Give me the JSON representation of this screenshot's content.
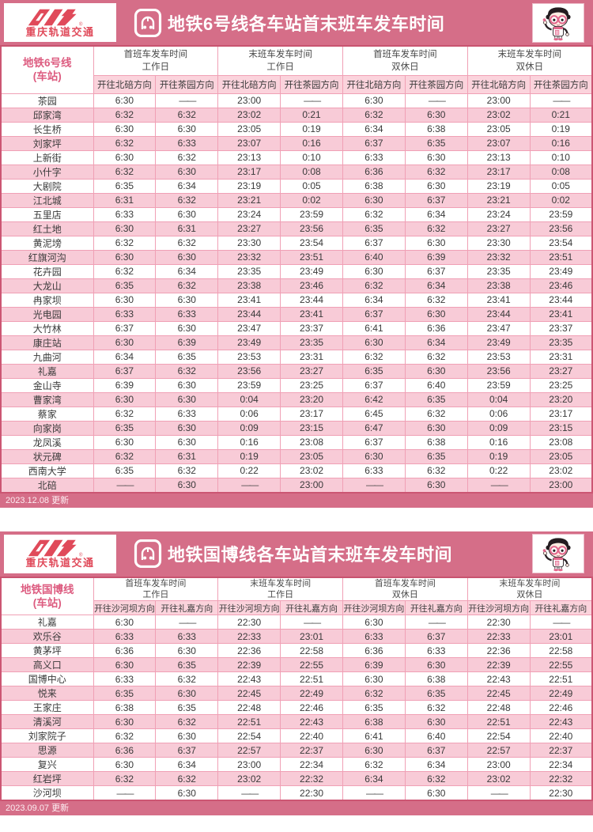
{
  "brand": {
    "name": "重庆轨道交通",
    "logo_color": "#e04a5a"
  },
  "colors": {
    "banner_pink": "#d56e88",
    "row_pink": "#f8cbd7",
    "header_pink": "#fbd3dc",
    "border_pink": "#f0a0b5",
    "accent_text_pink": "#dd5c80",
    "title_text": "#ffffff"
  },
  "sections": [
    {
      "title": "地铁6号线各车站首末班车发车时间",
      "station_header_line1": "地铁6号线",
      "station_header_line2": "(车站)",
      "groups": [
        {
          "line1": "首班车发车时间",
          "line2": "工作日"
        },
        {
          "line1": "末班车发车时间",
          "line2": "工作日"
        },
        {
          "line1": "首班车发车时间",
          "line2": "双休日"
        },
        {
          "line1": "末班车发车时间",
          "line2": "双休日"
        }
      ],
      "direction_headers": [
        "开往北碚方向",
        "开往茶园方向",
        "开往北碚方向",
        "开往茶园方向",
        "开往北碚方向",
        "开往茶园方向",
        "开往北碚方向",
        "开往茶园方向"
      ],
      "rows": [
        {
          "station": "茶园",
          "times": [
            "6:30",
            "——",
            "23:00",
            "——",
            "6:30",
            "——",
            "23:00",
            "——"
          ]
        },
        {
          "station": "邱家湾",
          "times": [
            "6:32",
            "6:32",
            "23:02",
            "0:21",
            "6:32",
            "6:30",
            "23:02",
            "0:21"
          ]
        },
        {
          "station": "长生桥",
          "times": [
            "6:30",
            "6:30",
            "23:05",
            "0:19",
            "6:34",
            "6:38",
            "23:05",
            "0:19"
          ]
        },
        {
          "station": "刘家坪",
          "times": [
            "6:32",
            "6:33",
            "23:07",
            "0:16",
            "6:37",
            "6:35",
            "23:07",
            "0:16"
          ]
        },
        {
          "station": "上新街",
          "times": [
            "6:30",
            "6:32",
            "23:13",
            "0:10",
            "6:33",
            "6:30",
            "23:13",
            "0:10"
          ]
        },
        {
          "station": "小什字",
          "times": [
            "6:32",
            "6:30",
            "23:17",
            "0:08",
            "6:36",
            "6:32",
            "23:17",
            "0:08"
          ]
        },
        {
          "station": "大剧院",
          "times": [
            "6:35",
            "6:34",
            "23:19",
            "0:05",
            "6:38",
            "6:30",
            "23:19",
            "0:05"
          ]
        },
        {
          "station": "江北城",
          "times": [
            "6:31",
            "6:32",
            "23:21",
            "0:02",
            "6:30",
            "6:37",
            "23:21",
            "0:02"
          ]
        },
        {
          "station": "五里店",
          "times": [
            "6:33",
            "6:30",
            "23:24",
            "23:59",
            "6:32",
            "6:34",
            "23:24",
            "23:59"
          ]
        },
        {
          "station": "红土地",
          "times": [
            "6:30",
            "6:31",
            "23:27",
            "23:56",
            "6:35",
            "6:32",
            "23:27",
            "23:56"
          ]
        },
        {
          "station": "黄泥塝",
          "times": [
            "6:32",
            "6:32",
            "23:30",
            "23:54",
            "6:37",
            "6:30",
            "23:30",
            "23:54"
          ]
        },
        {
          "station": "红旗河沟",
          "times": [
            "6:30",
            "6:30",
            "23:32",
            "23:51",
            "6:40",
            "6:39",
            "23:32",
            "23:51"
          ]
        },
        {
          "station": "花卉园",
          "times": [
            "6:32",
            "6:34",
            "23:35",
            "23:49",
            "6:30",
            "6:37",
            "23:35",
            "23:49"
          ]
        },
        {
          "station": "大龙山",
          "times": [
            "6:35",
            "6:32",
            "23:38",
            "23:46",
            "6:32",
            "6:34",
            "23:38",
            "23:46"
          ]
        },
        {
          "station": "冉家坝",
          "times": [
            "6:30",
            "6:30",
            "23:41",
            "23:44",
            "6:34",
            "6:32",
            "23:41",
            "23:44"
          ]
        },
        {
          "station": "光电园",
          "times": [
            "6:33",
            "6:33",
            "23:44",
            "23:41",
            "6:37",
            "6:30",
            "23:44",
            "23:41"
          ]
        },
        {
          "station": "大竹林",
          "times": [
            "6:37",
            "6:30",
            "23:47",
            "23:37",
            "6:41",
            "6:36",
            "23:47",
            "23:37"
          ]
        },
        {
          "station": "康庄站",
          "times": [
            "6:30",
            "6:39",
            "23:49",
            "23:35",
            "6:30",
            "6:34",
            "23:49",
            "23:35"
          ]
        },
        {
          "station": "九曲河",
          "times": [
            "6:34",
            "6:35",
            "23:53",
            "23:31",
            "6:32",
            "6:32",
            "23:53",
            "23:31"
          ]
        },
        {
          "station": "礼嘉",
          "times": [
            "6:37",
            "6:32",
            "23:56",
            "23:27",
            "6:35",
            "6:30",
            "23:56",
            "23:27"
          ]
        },
        {
          "station": "金山寺",
          "times": [
            "6:39",
            "6:30",
            "23:59",
            "23:25",
            "6:37",
            "6:40",
            "23:59",
            "23:25"
          ]
        },
        {
          "station": "曹家湾",
          "times": [
            "6:30",
            "6:30",
            "0:04",
            "23:20",
            "6:42",
            "6:35",
            "0:04",
            "23:20"
          ]
        },
        {
          "station": "蔡家",
          "times": [
            "6:32",
            "6:33",
            "0:06",
            "23:17",
            "6:45",
            "6:32",
            "0:06",
            "23:17"
          ]
        },
        {
          "station": "向家岗",
          "times": [
            "6:35",
            "6:30",
            "0:09",
            "23:15",
            "6:47",
            "6:30",
            "0:09",
            "23:15"
          ]
        },
        {
          "station": "龙凤溪",
          "times": [
            "6:30",
            "6:30",
            "0:16",
            "23:08",
            "6:37",
            "6:38",
            "0:16",
            "23:08"
          ]
        },
        {
          "station": "状元碑",
          "times": [
            "6:32",
            "6:31",
            "0:19",
            "23:05",
            "6:30",
            "6:35",
            "0:19",
            "23:05"
          ]
        },
        {
          "station": "西南大学",
          "times": [
            "6:35",
            "6:32",
            "0:22",
            "23:02",
            "6:33",
            "6:32",
            "0:22",
            "23:02"
          ]
        },
        {
          "station": "北碚",
          "times": [
            "——",
            "6:30",
            "——",
            "23:00",
            "——",
            "6:30",
            "——",
            "23:00"
          ]
        }
      ],
      "footer": "2023.12.08 更新"
    },
    {
      "title": "地铁国博线各车站首末班车发车时间",
      "station_header_line1": "地铁国博线",
      "station_header_line2": "(车站)",
      "groups": [
        {
          "line1": "首班车发车时间",
          "line2": "工作日"
        },
        {
          "line1": "末班车发车时间",
          "line2": "工作日"
        },
        {
          "line1": "首班车发车时间",
          "line2": "双休日"
        },
        {
          "line1": "末班车发车时间",
          "line2": "双休日"
        }
      ],
      "direction_headers": [
        "开往沙河坝方向",
        "开往礼嘉方向",
        "开往沙河坝方向",
        "开往礼嘉方向",
        "开往沙河坝方向",
        "开往礼嘉方向",
        "开往沙河坝方向",
        "开往礼嘉方向"
      ],
      "rows": [
        {
          "station": "礼嘉",
          "times": [
            "6:30",
            "——",
            "22:30",
            "——",
            "6:30",
            "——",
            "22:30",
            "——"
          ]
        },
        {
          "station": "欢乐谷",
          "times": [
            "6:33",
            "6:33",
            "22:33",
            "23:01",
            "6:33",
            "6:37",
            "22:33",
            "23:01"
          ]
        },
        {
          "station": "黄茅坪",
          "times": [
            "6:36",
            "6:30",
            "22:36",
            "22:58",
            "6:36",
            "6:33",
            "22:36",
            "22:58"
          ]
        },
        {
          "station": "高义口",
          "times": [
            "6:30",
            "6:35",
            "22:39",
            "22:55",
            "6:39",
            "6:30",
            "22:39",
            "22:55"
          ]
        },
        {
          "station": "国博中心",
          "times": [
            "6:33",
            "6:32",
            "22:43",
            "22:51",
            "6:30",
            "6:38",
            "22:43",
            "22:51"
          ]
        },
        {
          "station": "悦来",
          "times": [
            "6:35",
            "6:30",
            "22:45",
            "22:49",
            "6:32",
            "6:35",
            "22:45",
            "22:49"
          ]
        },
        {
          "station": "王家庄",
          "times": [
            "6:38",
            "6:35",
            "22:48",
            "22:46",
            "6:35",
            "6:32",
            "22:48",
            "22:46"
          ]
        },
        {
          "station": "清溪河",
          "times": [
            "6:30",
            "6:32",
            "22:51",
            "22:43",
            "6:38",
            "6:30",
            "22:51",
            "22:43"
          ]
        },
        {
          "station": "刘家院子",
          "times": [
            "6:32",
            "6:30",
            "22:54",
            "22:40",
            "6:41",
            "6:40",
            "22:54",
            "22:40"
          ]
        },
        {
          "station": "思源",
          "times": [
            "6:36",
            "6:37",
            "22:57",
            "22:37",
            "6:30",
            "6:37",
            "22:57",
            "22:37"
          ]
        },
        {
          "station": "复兴",
          "times": [
            "6:30",
            "6:34",
            "23:00",
            "22:34",
            "6:32",
            "6:34",
            "23:00",
            "22:34"
          ]
        },
        {
          "station": "红岩坪",
          "times": [
            "6:32",
            "6:32",
            "23:02",
            "22:32",
            "6:34",
            "6:32",
            "23:02",
            "22:32"
          ]
        },
        {
          "station": "沙河坝",
          "times": [
            "——",
            "6:30",
            "——",
            "22:30",
            "——",
            "6:30",
            "——",
            "22:30"
          ]
        }
      ],
      "footer": "2023.09.07 更新"
    }
  ]
}
